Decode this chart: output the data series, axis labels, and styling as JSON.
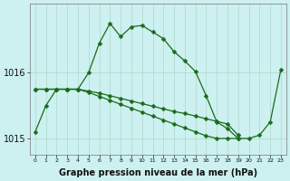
{
  "x": [
    0,
    1,
    2,
    3,
    4,
    5,
    6,
    7,
    8,
    9,
    10,
    11,
    12,
    13,
    14,
    15,
    16,
    17,
    18,
    19,
    20,
    21,
    22,
    23
  ],
  "line1": [
    1015.1,
    1015.5,
    1015.75,
    1015.75,
    1015.75,
    1016.0,
    1016.45,
    1016.75,
    1016.55,
    1016.7,
    1016.72,
    1016.62,
    1016.52,
    1016.32,
    1016.18,
    1016.02,
    1015.65,
    1015.25,
    1015.15,
    1015.0,
    1015.0,
    1015.05,
    1015.25,
    1016.05
  ],
  "line2": [
    1015.75,
    1015.75,
    1015.75,
    1015.75,
    1015.75,
    1015.72,
    1015.69,
    1015.65,
    1015.61,
    1015.57,
    1015.53,
    1015.49,
    1015.45,
    1015.41,
    1015.38,
    1015.34,
    1015.3,
    1015.26,
    1015.22,
    1015.05,
    null,
    null,
    null,
    null
  ],
  "line3": [
    1015.75,
    1015.75,
    1015.75,
    1015.75,
    1015.75,
    1015.7,
    1015.64,
    1015.58,
    1015.52,
    1015.46,
    1015.4,
    1015.34,
    1015.28,
    1015.22,
    1015.16,
    1015.1,
    1015.04,
    1015.0,
    1015.0,
    1015.0,
    null,
    null,
    null,
    null
  ],
  "ylim": [
    1014.75,
    1017.05
  ],
  "yticks": [
    1015.0,
    1016.0
  ],
  "ytick_labels": [
    "1015",
    "1016"
  ],
  "xlim": [
    -0.5,
    23.5
  ],
  "bg_color": "#cdf0f0",
  "grid_color": "#b0d8cc",
  "line_color": "#1a6b1a",
  "marker": "D",
  "markersize": 2.5,
  "linewidth": 0.9,
  "xlabel": "Graphe pression niveau de la mer (hPa)",
  "xlabel_fontsize": 7,
  "ytick_fontsize": 7,
  "xtick_fontsize": 4.5,
  "figsize": [
    3.2,
    2.0
  ],
  "dpi": 100
}
